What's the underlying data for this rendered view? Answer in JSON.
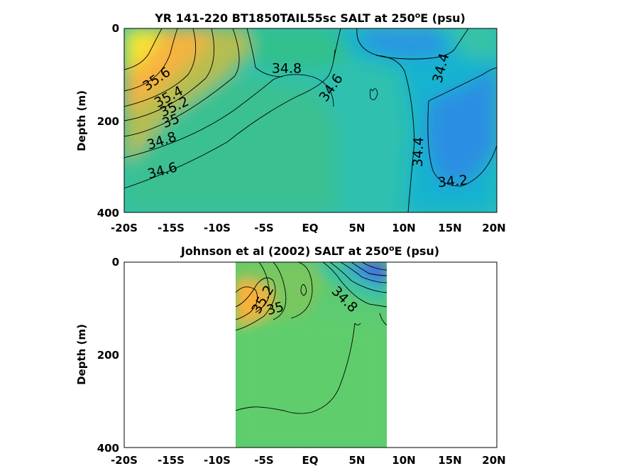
{
  "chart_data": [
    {
      "type": "heatmap",
      "title": "YR 141-220 BT1850TAIL55sc SALT at 250",
      "title_sup": "o",
      "title_suffix": "E (psu)",
      "ylabel": "Depth (m)",
      "xlabel": "",
      "x_ticks": [
        "-20S",
        "-15S",
        "-10S",
        "-5S",
        "EQ",
        "5N",
        "10N",
        "15N",
        "20N"
      ],
      "x_tick_values": [
        -20,
        -15,
        -10,
        -5,
        0,
        5,
        10,
        15,
        20
      ],
      "y_ticks": [
        "0",
        "200",
        "400"
      ],
      "y_tick_values": [
        0,
        200,
        400
      ],
      "xlim": [
        -20,
        20
      ],
      "ylim": [
        0,
        400
      ],
      "y_reversed": true,
      "colormap": "parula",
      "color_range": [
        34.0,
        35.8
      ],
      "data_lat_range": [
        -20,
        20
      ],
      "contour_labels": [
        {
          "text": "35.6",
          "lat": -17.5,
          "depth": 120,
          "angle": -35
        },
        {
          "text": "35.4",
          "lat": -16.5,
          "depth": 148,
          "angle": -28
        },
        {
          "text": "35.2",
          "lat": -15.8,
          "depth": 168,
          "angle": -25
        },
        {
          "text": "35",
          "lat": -16.3,
          "depth": 197,
          "angle": -20
        },
        {
          "text": "34.8",
          "lat": -17.1,
          "depth": 252,
          "angle": -18
        },
        {
          "text": "34.6",
          "lat": -16.9,
          "depth": 315,
          "angle": -15
        },
        {
          "text": "34.8",
          "lat": -2.3,
          "depth": 88,
          "angle": 0
        },
        {
          "text": "34.6",
          "lat": 2.6,
          "depth": 135,
          "angle": -55
        },
        {
          "text": "34.4",
          "lat": 14.1,
          "depth": 90,
          "angle": -75
        },
        {
          "text": "34.4",
          "lat": 11.6,
          "depth": 270,
          "angle": -88
        },
        {
          "text": "34.2",
          "lat": 15.8,
          "depth": 335,
          "angle": -5
        }
      ]
    },
    {
      "type": "heatmap",
      "title": "Johnson et al (2002) SALT at 250",
      "title_sup": "o",
      "title_suffix": "E (psu)",
      "ylabel": "Depth (m)",
      "xlabel": "",
      "x_ticks": [
        "-20S",
        "-15S",
        "-10S",
        "-5S",
        "EQ",
        "5N",
        "10N",
        "15N",
        "20N"
      ],
      "x_tick_values": [
        -20,
        -15,
        -10,
        -5,
        0,
        5,
        10,
        15,
        20
      ],
      "y_ticks": [
        "0",
        "200",
        "400"
      ],
      "y_tick_values": [
        0,
        200,
        400
      ],
      "xlim": [
        -20,
        20
      ],
      "ylim": [
        0,
        400
      ],
      "y_reversed": true,
      "colormap": "parula",
      "color_range": [
        34.0,
        35.8
      ],
      "data_lat_range": [
        -8,
        8.3
      ],
      "contour_labels": [
        {
          "text": "35.2",
          "lat": -5.3,
          "depth": 92,
          "angle": -60
        },
        {
          "text": "35",
          "lat": -3.9,
          "depth": 102,
          "angle": -15
        },
        {
          "text": "34.8",
          "lat": 3.5,
          "depth": 80,
          "angle": 45
        }
      ]
    }
  ]
}
